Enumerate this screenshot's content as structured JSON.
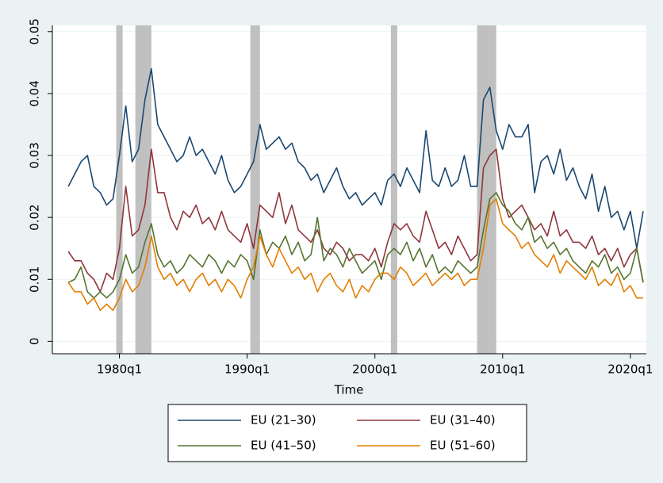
{
  "chart_data": {
    "type": "line",
    "xlabel": "Time",
    "x": [
      "1976q1",
      "1976q3",
      "1977q1",
      "1977q3",
      "1978q1",
      "1978q3",
      "1979q1",
      "1979q3",
      "1980q1",
      "1980q3",
      "1981q1",
      "1981q3",
      "1982q1",
      "1982q3",
      "1983q1",
      "1983q3",
      "1984q1",
      "1984q3",
      "1985q1",
      "1985q3",
      "1986q1",
      "1986q3",
      "1987q1",
      "1987q3",
      "1988q1",
      "1988q3",
      "1989q1",
      "1989q3",
      "1990q1",
      "1990q3",
      "1991q1",
      "1991q3",
      "1992q1",
      "1992q3",
      "1993q1",
      "1993q3",
      "1994q1",
      "1994q3",
      "1995q1",
      "1995q3",
      "1996q1",
      "1996q3",
      "1997q1",
      "1997q3",
      "1998q1",
      "1998q3",
      "1999q1",
      "1999q3",
      "2000q1",
      "2000q3",
      "2001q1",
      "2001q3",
      "2002q1",
      "2002q3",
      "2003q1",
      "2003q3",
      "2004q1",
      "2004q3",
      "2005q1",
      "2005q3",
      "2006q1",
      "2006q3",
      "2007q1",
      "2007q3",
      "2008q1",
      "2008q3",
      "2009q1",
      "2009q3",
      "2010q1",
      "2010q3",
      "2011q1",
      "2011q3",
      "2012q1",
      "2012q3",
      "2013q1",
      "2013q3",
      "2014q1",
      "2014q3",
      "2015q1",
      "2015q3",
      "2016q1",
      "2016q3",
      "2017q1",
      "2017q3",
      "2018q1",
      "2018q3",
      "2019q1",
      "2019q3",
      "2020q1",
      "2020q3",
      "2021q1"
    ],
    "series": [
      {
        "name": "EU (21–30)",
        "color": "#1a476f",
        "values": [
          0.025,
          0.027,
          0.029,
          0.03,
          0.025,
          0.024,
          0.022,
          0.023,
          0.03,
          0.038,
          0.029,
          0.031,
          0.039,
          0.044,
          0.035,
          0.033,
          0.031,
          0.029,
          0.03,
          0.033,
          0.03,
          0.031,
          0.029,
          0.027,
          0.03,
          0.026,
          0.024,
          0.025,
          0.027,
          0.029,
          0.035,
          0.031,
          0.032,
          0.033,
          0.031,
          0.032,
          0.029,
          0.028,
          0.026,
          0.027,
          0.024,
          0.026,
          0.028,
          0.025,
          0.023,
          0.024,
          0.022,
          0.023,
          0.024,
          0.022,
          0.026,
          0.027,
          0.025,
          0.028,
          0.026,
          0.024,
          0.034,
          0.026,
          0.025,
          0.028,
          0.025,
          0.026,
          0.03,
          0.025,
          0.025,
          0.039,
          0.041,
          0.034,
          0.031,
          0.035,
          0.033,
          0.033,
          0.035,
          0.024,
          0.029,
          0.03,
          0.027,
          0.031,
          0.026,
          0.028,
          0.025,
          0.023,
          0.027,
          0.021,
          0.025,
          0.02,
          0.021,
          0.018,
          0.021,
          0.015,
          0.021
        ]
      },
      {
        "name": "EU (31–40)",
        "color": "#90353b",
        "values": [
          0.0145,
          0.013,
          0.013,
          0.011,
          0.01,
          0.008,
          0.011,
          0.01,
          0.015,
          0.025,
          0.017,
          0.018,
          0.022,
          0.031,
          0.024,
          0.024,
          0.02,
          0.018,
          0.021,
          0.02,
          0.022,
          0.019,
          0.02,
          0.018,
          0.021,
          0.018,
          0.017,
          0.016,
          0.019,
          0.015,
          0.022,
          0.021,
          0.02,
          0.024,
          0.019,
          0.022,
          0.018,
          0.017,
          0.016,
          0.018,
          0.015,
          0.014,
          0.016,
          0.015,
          0.013,
          0.014,
          0.014,
          0.013,
          0.015,
          0.012,
          0.016,
          0.019,
          0.018,
          0.019,
          0.017,
          0.016,
          0.021,
          0.018,
          0.015,
          0.016,
          0.014,
          0.017,
          0.015,
          0.013,
          0.014,
          0.028,
          0.03,
          0.031,
          0.023,
          0.02,
          0.021,
          0.022,
          0.02,
          0.018,
          0.019,
          0.017,
          0.021,
          0.017,
          0.018,
          0.016,
          0.016,
          0.015,
          0.017,
          0.014,
          0.015,
          0.013,
          0.015,
          0.012,
          0.014,
          0.015,
          0.0095
        ]
      },
      {
        "name": "EU (41–50)",
        "color": "#55752f",
        "values": [
          0.0095,
          0.01,
          0.012,
          0.008,
          0.007,
          0.008,
          0.007,
          0.008,
          0.01,
          0.014,
          0.011,
          0.012,
          0.016,
          0.019,
          0.014,
          0.012,
          0.013,
          0.011,
          0.012,
          0.014,
          0.013,
          0.012,
          0.014,
          0.013,
          0.011,
          0.013,
          0.012,
          0.014,
          0.013,
          0.01,
          0.018,
          0.014,
          0.016,
          0.015,
          0.017,
          0.014,
          0.016,
          0.013,
          0.014,
          0.02,
          0.013,
          0.015,
          0.014,
          0.012,
          0.015,
          0.013,
          0.011,
          0.012,
          0.013,
          0.01,
          0.014,
          0.015,
          0.014,
          0.016,
          0.013,
          0.015,
          0.012,
          0.014,
          0.011,
          0.012,
          0.011,
          0.013,
          0.012,
          0.011,
          0.012,
          0.018,
          0.023,
          0.024,
          0.022,
          0.021,
          0.019,
          0.018,
          0.02,
          0.016,
          0.017,
          0.015,
          0.016,
          0.014,
          0.015,
          0.013,
          0.012,
          0.011,
          0.013,
          0.012,
          0.014,
          0.011,
          0.012,
          0.01,
          0.011,
          0.015,
          0.0095
        ]
      },
      {
        "name": "EU (51–60)",
        "color": "#e37e00",
        "values": [
          0.0095,
          0.008,
          0.008,
          0.006,
          0.007,
          0.005,
          0.006,
          0.005,
          0.007,
          0.01,
          0.008,
          0.009,
          0.012,
          0.017,
          0.012,
          0.01,
          0.011,
          0.009,
          0.01,
          0.008,
          0.01,
          0.011,
          0.009,
          0.01,
          0.008,
          0.01,
          0.009,
          0.007,
          0.01,
          0.012,
          0.017,
          0.014,
          0.012,
          0.015,
          0.013,
          0.011,
          0.012,
          0.01,
          0.011,
          0.008,
          0.01,
          0.011,
          0.009,
          0.008,
          0.01,
          0.007,
          0.009,
          0.008,
          0.01,
          0.011,
          0.011,
          0.01,
          0.012,
          0.011,
          0.009,
          0.01,
          0.011,
          0.009,
          0.01,
          0.011,
          0.01,
          0.011,
          0.009,
          0.01,
          0.01,
          0.015,
          0.022,
          0.023,
          0.019,
          0.018,
          0.017,
          0.015,
          0.016,
          0.014,
          0.013,
          0.012,
          0.014,
          0.011,
          0.013,
          0.012,
          0.011,
          0.01,
          0.012,
          0.009,
          0.01,
          0.009,
          0.011,
          0.008,
          0.009,
          0.007,
          0.007
        ]
      }
    ],
    "shaded_periods": [
      {
        "start": "1979q4",
        "end": "1980q2"
      },
      {
        "start": "1981q2",
        "end": "1982q3"
      },
      {
        "start": "1990q2",
        "end": "1991q1"
      },
      {
        "start": "2001q2",
        "end": "2001q4"
      },
      {
        "start": "2008q1",
        "end": "2009q3"
      }
    ],
    "shade_color": "#c0c0c0",
    "xlim": [
      "1974q4",
      "2021q2"
    ],
    "xticks": [
      "1980q1",
      "1990q1",
      "2000q1",
      "2010q1",
      "2020q1"
    ],
    "ylim": [
      -0.002,
      0.051
    ],
    "yticks": [
      0,
      0.01,
      0.02,
      0.03,
      0.04,
      0.05
    ],
    "grid": true,
    "legend": "bottom"
  }
}
